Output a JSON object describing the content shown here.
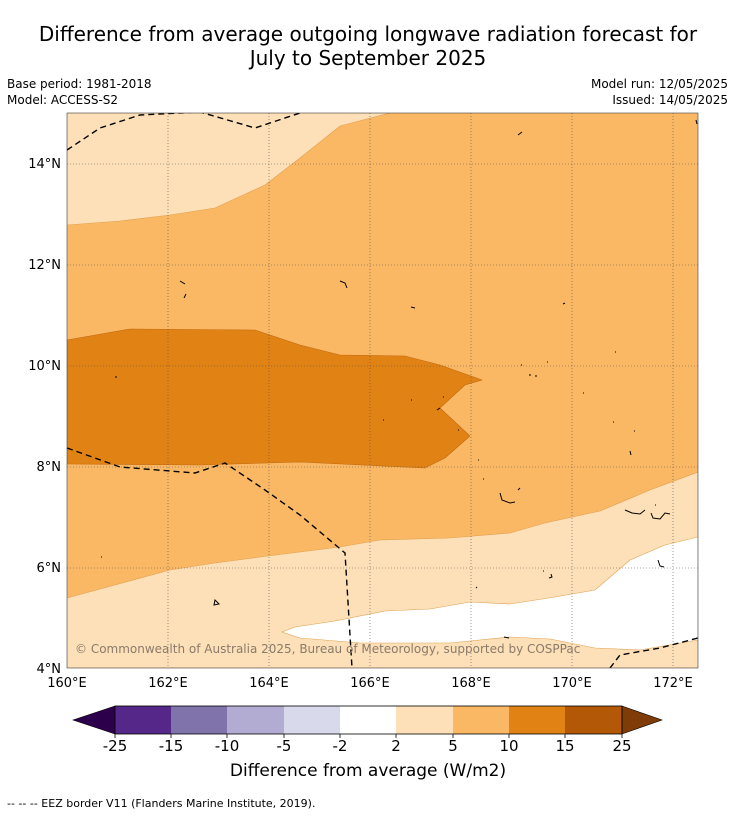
{
  "header": {
    "title_line1": "Difference from average outgoing longwave radiation forecast for",
    "title_line2": "July to September 2025",
    "base_period": "Base period: 1981-2018",
    "model": "Model: ACCESS-S2",
    "model_run": "Model run: 12/05/2025",
    "issued": "Issued: 14/05/2025"
  },
  "map": {
    "lon_range": [
      160,
      172.5
    ],
    "lat_range": [
      4,
      15
    ],
    "lat_ticks": [
      "14°N",
      "12°N",
      "10°N",
      "8°N",
      "6°N",
      "4°N"
    ],
    "lon_ticks": [
      "160°E",
      "162°E",
      "164°E",
      "166°E",
      "168°E",
      "170°E",
      "172°E"
    ],
    "copyright": "© Commonwealth of Australia 2025, Bureau of Meteorology, supported by COSPPac",
    "fill_colors": {
      "2_to_5": "#fde0b8",
      "5_to_10": "#fbb864",
      "10_to_15": "#e08214",
      "neutral": "#ffffff"
    }
  },
  "colorbar": {
    "labels": [
      "-25",
      "-15",
      "-10",
      "-5",
      "-2",
      "2",
      "5",
      "10",
      "15",
      "25"
    ],
    "colors": [
      "#2d004b",
      "#542788",
      "#8073ac",
      "#b2abd2",
      "#d8daeb",
      "#ffffff",
      "#fde0b8",
      "#fbb864",
      "#e08214",
      "#b35806",
      "#7f3b08"
    ],
    "title": "Difference from average (W/m2)"
  },
  "footnote": "--  --  -- EEZ border V11 (Flanders Marine Institute, 2019)."
}
